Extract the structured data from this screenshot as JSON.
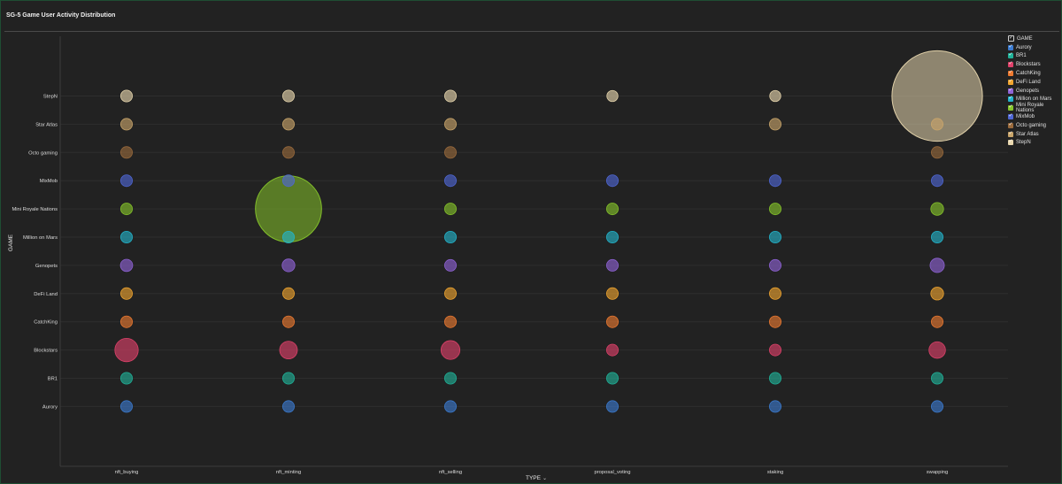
{
  "title": "SG-5 Game User Activity Distribution",
  "colors": {
    "Aurory": "#3b7bd1",
    "BR1": "#20b39a",
    "Blockstars": "#e0416a",
    "CatchKing": "#ee7a30",
    "DeFi Land": "#f0a52f",
    "Genopets": "#8f63d6",
    "Million on Mars": "#23b5cc",
    "Mini Royale Nations": "#86c52a",
    "MixMob": "#4f67d6",
    "Octo gaming": "#9a6a3c",
    "Star Atlas": "#c9a56a",
    "StepN": "#e8d7ae"
  },
  "legend": {
    "header": "GAME",
    "items": [
      "Aurory",
      "BR1",
      "Blockstars",
      "CatchKing",
      "DeFi Land",
      "Genopets",
      "Million on Mars",
      "Mini Royale Nations",
      "MixMob",
      "Octo gaming",
      "Star Atlas",
      "StepN"
    ]
  },
  "chart_data": {
    "type": "scatter",
    "title": "SG-5 Game User Activity Distribution",
    "xlabel": "TYPE",
    "ylabel": "GAME",
    "x_categories": [
      "nft_buying",
      "nft_minting",
      "nft_selling",
      "proposal_voting",
      "staking",
      "swapping"
    ],
    "y_categories": [
      "Aurory",
      "BR1",
      "Blockstars",
      "CatchKing",
      "DeFi Land",
      "Genopets",
      "Million on Mars",
      "Mini Royale Nations",
      "MixMob",
      "Octo gaming",
      "Star Atlas",
      "StepN"
    ],
    "size_encoding": "relative bubble size (estimated)",
    "points": [
      {
        "game": "StepN",
        "type": "nft_buying",
        "size": 1
      },
      {
        "game": "StepN",
        "type": "nft_minting",
        "size": 1
      },
      {
        "game": "StepN",
        "type": "nft_selling",
        "size": 1
      },
      {
        "game": "StepN",
        "type": "proposal_voting",
        "size": 0.9
      },
      {
        "game": "StepN",
        "type": "staking",
        "size": 0.9
      },
      {
        "game": "StepN",
        "type": "swapping",
        "size": 60
      },
      {
        "game": "Star Atlas",
        "type": "nft_buying",
        "size": 1
      },
      {
        "game": "Star Atlas",
        "type": "nft_minting",
        "size": 1
      },
      {
        "game": "Star Atlas",
        "type": "nft_selling",
        "size": 1
      },
      {
        "game": "Star Atlas",
        "type": "staking",
        "size": 1
      },
      {
        "game": "Star Atlas",
        "type": "swapping",
        "size": 1
      },
      {
        "game": "Octo gaming",
        "type": "nft_buying",
        "size": 1
      },
      {
        "game": "Octo gaming",
        "type": "nft_minting",
        "size": 1
      },
      {
        "game": "Octo gaming",
        "type": "nft_selling",
        "size": 1
      },
      {
        "game": "Octo gaming",
        "type": "swapping",
        "size": 1
      },
      {
        "game": "MixMob",
        "type": "nft_buying",
        "size": 1
      },
      {
        "game": "MixMob",
        "type": "nft_minting",
        "size": 1
      },
      {
        "game": "MixMob",
        "type": "nft_selling",
        "size": 1
      },
      {
        "game": "MixMob",
        "type": "proposal_voting",
        "size": 1
      },
      {
        "game": "MixMob",
        "type": "staking",
        "size": 1
      },
      {
        "game": "MixMob",
        "type": "swapping",
        "size": 1
      },
      {
        "game": "Mini Royale Nations",
        "type": "nft_buying",
        "size": 1
      },
      {
        "game": "Mini Royale Nations",
        "type": "nft_minting",
        "size": 32
      },
      {
        "game": "Mini Royale Nations",
        "type": "nft_selling",
        "size": 1
      },
      {
        "game": "Mini Royale Nations",
        "type": "proposal_voting",
        "size": 1
      },
      {
        "game": "Mini Royale Nations",
        "type": "staking",
        "size": 1
      },
      {
        "game": "Mini Royale Nations",
        "type": "swapping",
        "size": 1.2
      },
      {
        "game": "Million on Mars",
        "type": "nft_buying",
        "size": 1
      },
      {
        "game": "Million on Mars",
        "type": "nft_minting",
        "size": 1
      },
      {
        "game": "Million on Mars",
        "type": "nft_selling",
        "size": 1
      },
      {
        "game": "Million on Mars",
        "type": "proposal_voting",
        "size": 1
      },
      {
        "game": "Million on Mars",
        "type": "staking",
        "size": 1
      },
      {
        "game": "Million on Mars",
        "type": "swapping",
        "size": 1
      },
      {
        "game": "Genopets",
        "type": "nft_buying",
        "size": 1.1
      },
      {
        "game": "Genopets",
        "type": "nft_minting",
        "size": 1.2
      },
      {
        "game": "Genopets",
        "type": "nft_selling",
        "size": 1
      },
      {
        "game": "Genopets",
        "type": "proposal_voting",
        "size": 1
      },
      {
        "game": "Genopets",
        "type": "staking",
        "size": 1
      },
      {
        "game": "Genopets",
        "type": "swapping",
        "size": 1.5
      },
      {
        "game": "DeFi Land",
        "type": "nft_buying",
        "size": 1
      },
      {
        "game": "DeFi Land",
        "type": "nft_minting",
        "size": 1
      },
      {
        "game": "DeFi Land",
        "type": "nft_selling",
        "size": 1
      },
      {
        "game": "DeFi Land",
        "type": "proposal_voting",
        "size": 1
      },
      {
        "game": "DeFi Land",
        "type": "staking",
        "size": 1
      },
      {
        "game": "DeFi Land",
        "type": "swapping",
        "size": 1.2
      },
      {
        "game": "CatchKing",
        "type": "nft_buying",
        "size": 1
      },
      {
        "game": "CatchKing",
        "type": "nft_minting",
        "size": 1
      },
      {
        "game": "CatchKing",
        "type": "nft_selling",
        "size": 1
      },
      {
        "game": "CatchKing",
        "type": "proposal_voting",
        "size": 1
      },
      {
        "game": "CatchKing",
        "type": "staking",
        "size": 1
      },
      {
        "game": "CatchKing",
        "type": "swapping",
        "size": 1
      },
      {
        "game": "Blockstars",
        "type": "nft_buying",
        "size": 4
      },
      {
        "game": "Blockstars",
        "type": "nft_minting",
        "size": 2.3
      },
      {
        "game": "Blockstars",
        "type": "nft_selling",
        "size": 2.6
      },
      {
        "game": "Blockstars",
        "type": "proposal_voting",
        "size": 1
      },
      {
        "game": "Blockstars",
        "type": "staking",
        "size": 1
      },
      {
        "game": "Blockstars",
        "type": "swapping",
        "size": 2
      },
      {
        "game": "BR1",
        "type": "nft_buying",
        "size": 1
      },
      {
        "game": "BR1",
        "type": "nft_minting",
        "size": 1
      },
      {
        "game": "BR1",
        "type": "nft_selling",
        "size": 1
      },
      {
        "game": "BR1",
        "type": "proposal_voting",
        "size": 1
      },
      {
        "game": "BR1",
        "type": "staking",
        "size": 1
      },
      {
        "game": "BR1",
        "type": "swapping",
        "size": 1
      },
      {
        "game": "Aurory",
        "type": "nft_buying",
        "size": 1
      },
      {
        "game": "Aurory",
        "type": "nft_minting",
        "size": 1
      },
      {
        "game": "Aurory",
        "type": "nft_selling",
        "size": 1
      },
      {
        "game": "Aurory",
        "type": "proposal_voting",
        "size": 1
      },
      {
        "game": "Aurory",
        "type": "staking",
        "size": 1
      },
      {
        "game": "Aurory",
        "type": "swapping",
        "size": 1
      }
    ],
    "grid": true,
    "legend_position": "right"
  }
}
